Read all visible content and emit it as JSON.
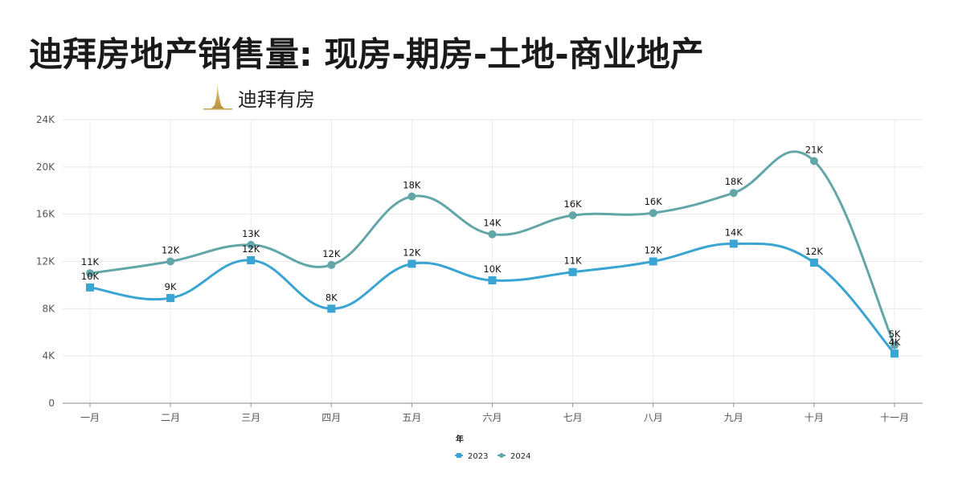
{
  "page": {
    "title": "迪拜房地产销售量: 现房-期房-土地-商业地产",
    "brand_name": "迪拜有房",
    "brand_logo_icon": "burj-khalifa-icon"
  },
  "chart_data": {
    "type": "line",
    "xlabel": "年",
    "ylabel": "",
    "ylim": [
      0,
      24000
    ],
    "yticks": [
      0,
      4000,
      8000,
      12000,
      16000,
      20000,
      24000
    ],
    "ytick_labels": [
      "0",
      "4K",
      "8K",
      "12K",
      "16K",
      "20K",
      "24K"
    ],
    "categories": [
      "一月",
      "二月",
      "三月",
      "四月",
      "五月",
      "六月",
      "七月",
      "八月",
      "九月",
      "十月",
      "十一月"
    ],
    "grid": true,
    "legend_position": "bottom-center",
    "series": [
      {
        "name": "2023",
        "color": "#3aa4d2",
        "marker": "square",
        "values": [
          9800,
          8900,
          12100,
          8000,
          11800,
          10400,
          11100,
          12000,
          13500,
          11900,
          4200
        ],
        "labels": [
          "10K",
          "9K",
          "12K",
          "8K",
          "12K",
          "10K",
          "11K",
          "12K",
          "14K",
          "12K",
          "4K"
        ]
      },
      {
        "name": "2024",
        "color": "#62a6a8",
        "marker": "circle",
        "values": [
          11000,
          12000,
          13400,
          11700,
          17500,
          14300,
          15900,
          16100,
          17800,
          20500,
          4900
        ],
        "labels": [
          "11K",
          "12K",
          "13K",
          "12K",
          "18K",
          "14K",
          "16K",
          "16K",
          "18K",
          "21K",
          "5K"
        ]
      }
    ]
  }
}
